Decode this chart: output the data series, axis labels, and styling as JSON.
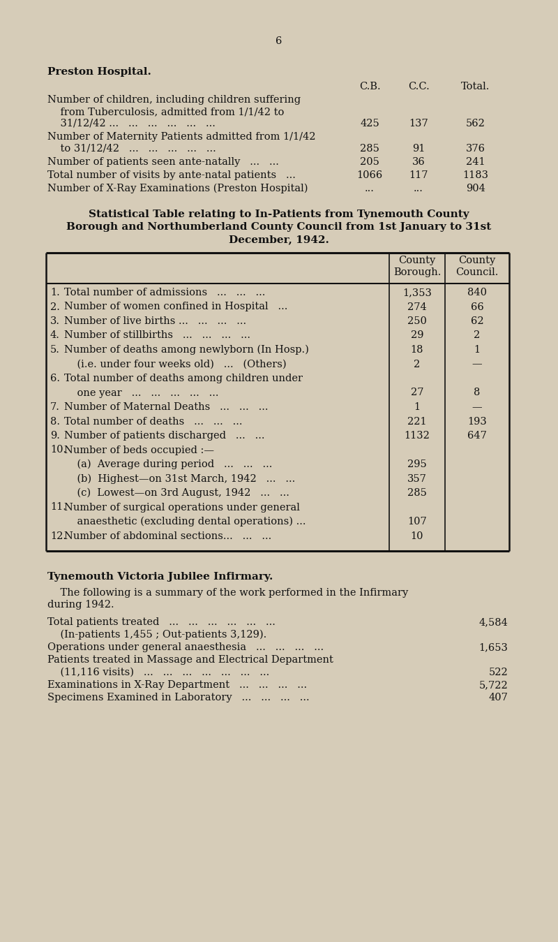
{
  "background_color": "#d6ccb8",
  "page_number": "6",
  "section1_title": "Preston Hospital.",
  "section1_header": [
    "C.B.",
    "C.C.",
    "Total."
  ],
  "section1_rows": [
    {
      "lines": [
        "Number of children, including children suffering",
        "    from Tuberculosis, admitted from 1/1/42 to",
        "    31/12/42 ...   ...   ...   ...   ...   ..."
      ],
      "cb": "425",
      "cc": "137",
      "total": "562"
    },
    {
      "lines": [
        "Number of Maternity Patients admitted from 1/1/42",
        "    to 31/12/42   ...   ...   ...   ...   ..."
      ],
      "cb": "285",
      "cc": "91",
      "total": "376"
    },
    {
      "lines": [
        "Number of patients seen ante-natally   ...   ..."
      ],
      "cb": "205",
      "cc": "36",
      "total": "241"
    },
    {
      "lines": [
        "Total number of visits by ante-natal patients   ... "
      ],
      "cb": "1066",
      "cc": "117",
      "total": "1183"
    },
    {
      "lines": [
        "Number of X-Ray Examinations (Preston Hospital)"
      ],
      "cb": "...",
      "cc": "...",
      "total": "904"
    }
  ],
  "section2_title_lines": [
    "Statistical Table relating to In-Patients from Tynemouth County",
    "Borough and Northumberland County Council from 1st January to 31st",
    "December, 1942."
  ],
  "table_rows": [
    {
      "num": "1.",
      "label": "Total number of admissions   ...   ...   ...",
      "cb": "1,353",
      "cc": "840"
    },
    {
      "num": "2.",
      "label": "Number of women confined in Hospital   ...",
      "cb": "274",
      "cc": "66"
    },
    {
      "num": "3.",
      "label": "Number of live births ...   ...   ...   ...",
      "cb": "250",
      "cc": "62"
    },
    {
      "num": "4.",
      "label": "Number of stillbirths   ...   ...   ...   ...",
      "cb": "29",
      "cc": "2"
    },
    {
      "num": "5.",
      "label": "Number of deaths among newlyborn (In Hosp.)",
      "cb": "18",
      "cc": "1"
    },
    {
      "num": "",
      "label": "    (i.e. under four weeks old)   ...   (Others)",
      "cb": "2",
      "cc": "—"
    },
    {
      "num": "6.",
      "label": "Total number of deaths among children under",
      "cb": "",
      "cc": ""
    },
    {
      "num": "",
      "label": "    one year   ...   ...   ...   ...   ...",
      "cb": "27",
      "cc": "8"
    },
    {
      "num": "7.",
      "label": "Number of Maternal Deaths   ...   ...   ...",
      "cb": "1",
      "cc": "—"
    },
    {
      "num": "8.",
      "label": "Total number of deaths   ...   ...   ...",
      "cb": "221",
      "cc": "193"
    },
    {
      "num": "9.",
      "label": "Number of patients discharged   ...   ...",
      "cb": "1132",
      "cc": "647"
    },
    {
      "num": "10.",
      "label": "Number of beds occupied :—",
      "cb": "",
      "cc": ""
    },
    {
      "num": "",
      "label": "    (a)  Average during period   ...   ...   ...",
      "cb": "295",
      "cc": ""
    },
    {
      "num": "",
      "label": "    (b)  Highest—on 31st March, 1942   ...   ...",
      "cb": "357",
      "cc": ""
    },
    {
      "num": "",
      "label": "    (c)  Lowest—on 3rd August, 1942   ...   ...",
      "cb": "285",
      "cc": ""
    },
    {
      "num": "11.",
      "label": "Number of surgical operations under general",
      "cb": "",
      "cc": ""
    },
    {
      "num": "",
      "label": "    anaesthetic (excluding dental operations) ...",
      "cb": "107",
      "cc": ""
    },
    {
      "num": "12.",
      "label": "Number of abdominal sections...   ...   ...",
      "cb": "10",
      "cc": ""
    }
  ],
  "section3_title": "Tynemouth Victoria Jubilee Infirmary.",
  "section3_intro_lines": [
    "    The following is a summary of the work performed in the Infirmary",
    "during 1942."
  ],
  "section3_rows": [
    {
      "label": "Total patients treated   ...   ...   ...   ...   ...   ...",
      "value": "4,584"
    },
    {
      "label": "    (In-patients 1,455 ; Out-patients 3,129).",
      "value": ""
    },
    {
      "label": "Operations under general anaesthesia   ...   ...   ...   ...",
      "value": "1,653"
    },
    {
      "label": "Patients treated in Massage and Electrical Department",
      "value": ""
    },
    {
      "label": "    (11,116 visits)   ...   ...   ...   ...   ...   ...   ...",
      "value": "522"
    },
    {
      "label": "Examinations in X-Ray Department   ...   ...   ...   ...",
      "value": "5,722"
    },
    {
      "label": "Specimens Examined in Laboratory   ...   ...   ...   ...",
      "value": "407"
    }
  ]
}
